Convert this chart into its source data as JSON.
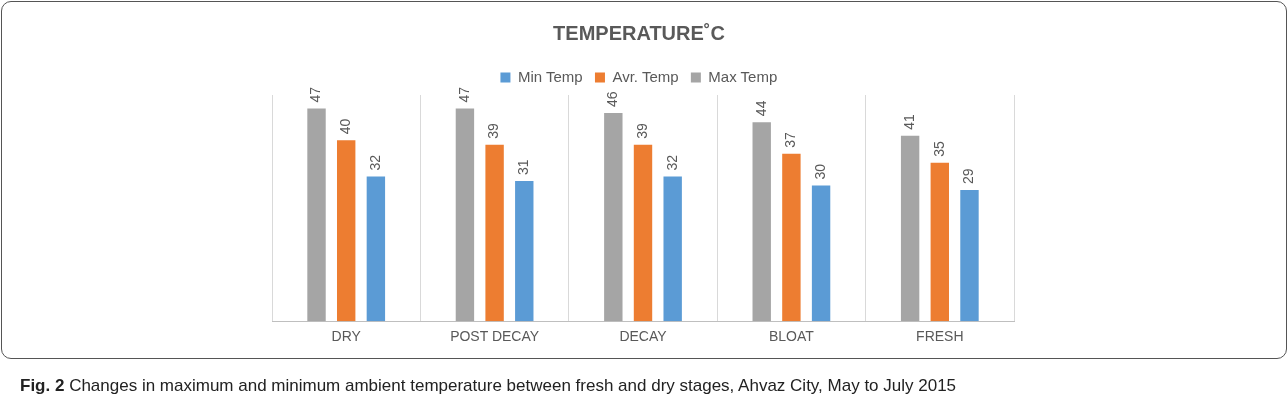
{
  "chart_data": {
    "type": "bar",
    "title": "TEMPERATURE˚C",
    "categories": [
      "DRY",
      "POST DECAY",
      "DECAY",
      "BLOAT",
      "FRESH"
    ],
    "series": [
      {
        "name": "Max Temp",
        "color": "#a5a5a5",
        "values": [
          47,
          47,
          46,
          44,
          41
        ]
      },
      {
        "name": "Avr. Temp",
        "color": "#ed7d31",
        "values": [
          40,
          39,
          39,
          37,
          35
        ]
      },
      {
        "name": "Min Temp",
        "color": "#5b9bd5",
        "values": [
          32,
          31,
          32,
          30,
          29
        ]
      }
    ],
    "ylim": [
      0,
      50
    ],
    "data_labels": true,
    "grid": "x",
    "legend": "top",
    "annotations": [
      "Fig. 2 Changes in maximum and minimum ambient temperature between fresh and dry stages, Ahvaz City, May to July 2015"
    ]
  }
}
